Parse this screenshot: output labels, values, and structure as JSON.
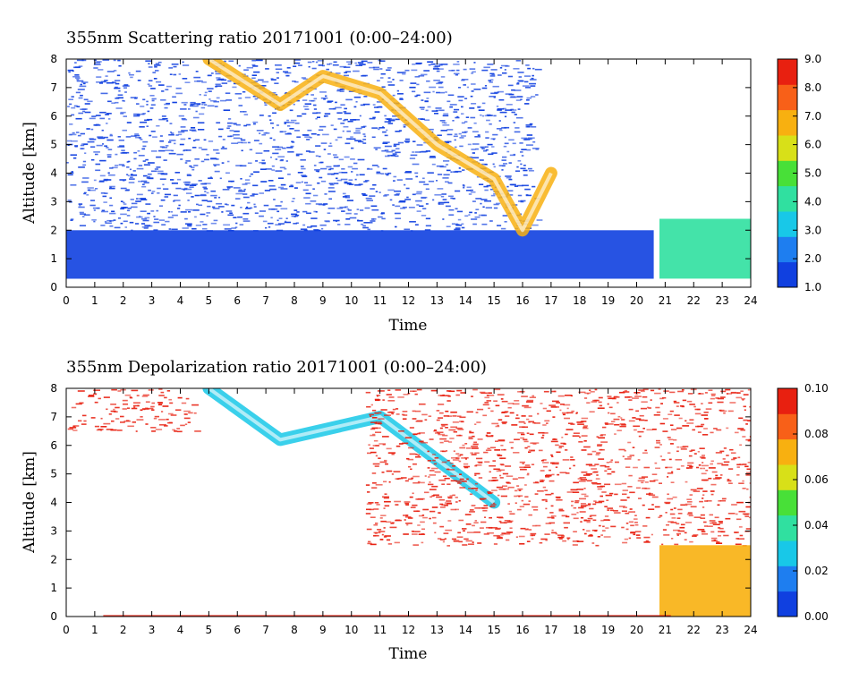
{
  "chart_data": [
    {
      "type": "heatmap",
      "title": "355nm Scattering ratio  20171001 (0:00–24:00)",
      "xlabel": "Time",
      "ylabel": "Altitude [km]",
      "xlim": [
        0,
        24
      ],
      "ylim": [
        0,
        8
      ],
      "x_ticks": [
        "0",
        "1",
        "2",
        "3",
        "4",
        "5",
        "6",
        "7",
        "8",
        "9",
        "10",
        "11",
        "12",
        "13",
        "14",
        "15",
        "16",
        "17",
        "18",
        "19",
        "20",
        "21",
        "22",
        "23",
        "24"
      ],
      "y_ticks": [
        "0",
        "1",
        "2",
        "3",
        "4",
        "5",
        "6",
        "7",
        "8"
      ],
      "colorbar": {
        "range": [
          1.0,
          9.0
        ],
        "ticks": [
          "1.0",
          "2.0",
          "3.0",
          "4.0",
          "5.0",
          "6.0",
          "7.0",
          "8.0",
          "9.0"
        ],
        "colors": [
          "#1040e0",
          "#1e7ef0",
          "#18c8e8",
          "#30e0a0",
          "#48e038",
          "#d8e018",
          "#f8b010",
          "#f86018",
          "#e82010"
        ]
      },
      "features": [
        {
          "name": "boundary layer",
          "time_start": 0,
          "time_end": 20.6,
          "alt_bottom": 0.3,
          "alt_top": 2.0,
          "value": 1.6
        },
        {
          "name": "noisy free troposphere",
          "time_start": 0,
          "time_end": 16.5,
          "alt_bottom": 2.0,
          "alt_top": 8.0,
          "value": 1.3
        },
        {
          "name": "descending cirrus",
          "points": [
            [
              5.0,
              8.0
            ],
            [
              7.5,
              6.4
            ],
            [
              9.0,
              7.4
            ],
            [
              11.0,
              6.8
            ],
            [
              13.0,
              5.0
            ],
            [
              15.0,
              3.8
            ],
            [
              16.0,
              2.0
            ],
            [
              17.0,
              4.0
            ]
          ],
          "value": 7.0
        },
        {
          "name": "low cloud",
          "time_start": 20.8,
          "time_end": 24,
          "alt_bottom": 0.3,
          "alt_top": 2.4,
          "value": 4.0
        }
      ]
    },
    {
      "type": "heatmap",
      "title": "355nm Depolarization ratio  20171001 (0:00–24:00)",
      "xlabel": "Time",
      "ylabel": "Altitude [km]",
      "xlim": [
        0,
        24
      ],
      "ylim": [
        0,
        8
      ],
      "x_ticks": [
        "0",
        "1",
        "2",
        "3",
        "4",
        "5",
        "6",
        "7",
        "8",
        "9",
        "10",
        "11",
        "12",
        "13",
        "14",
        "15",
        "16",
        "17",
        "18",
        "19",
        "20",
        "21",
        "22",
        "23",
        "24"
      ],
      "y_ticks": [
        "0",
        "1",
        "2",
        "3",
        "4",
        "5",
        "6",
        "7",
        "8"
      ],
      "colorbar": {
        "range": [
          0.0,
          0.1
        ],
        "ticks": [
          "0.00",
          "0.02",
          "0.04",
          "0.06",
          "0.08",
          "0.10"
        ],
        "colors": [
          "#1040e0",
          "#1e7ef0",
          "#18c8e8",
          "#30e0a0",
          "#48e038",
          "#d8e018",
          "#f8b010",
          "#f86018",
          "#e82010"
        ]
      },
      "features": [
        {
          "name": "high-altitude noise",
          "time_start": 0,
          "time_end": 4.5,
          "alt_bottom": 6.5,
          "alt_top": 8.0,
          "value": 0.09
        },
        {
          "name": "descending cirrus",
          "points": [
            [
              5.0,
              8.0
            ],
            [
              7.5,
              6.2
            ],
            [
              11.0,
              7.0
            ],
            [
              13.0,
              5.5
            ],
            [
              15.0,
              4.0
            ]
          ],
          "value": 0.025
        },
        {
          "name": "high-depol region",
          "time_start": 10.5,
          "time_end": 24,
          "alt_bottom": 2.5,
          "alt_top": 8.0,
          "value": 0.09
        },
        {
          "name": "lower cloud",
          "time_start": 20.8,
          "time_end": 24,
          "alt_bottom": 0.0,
          "alt_top": 2.5,
          "value": 0.075
        },
        {
          "name": "surface line",
          "time_start": 1.3,
          "time_end": 21.2,
          "alt_bottom": 0.0,
          "alt_top": 0.05,
          "value": 0.09
        }
      ]
    }
  ]
}
